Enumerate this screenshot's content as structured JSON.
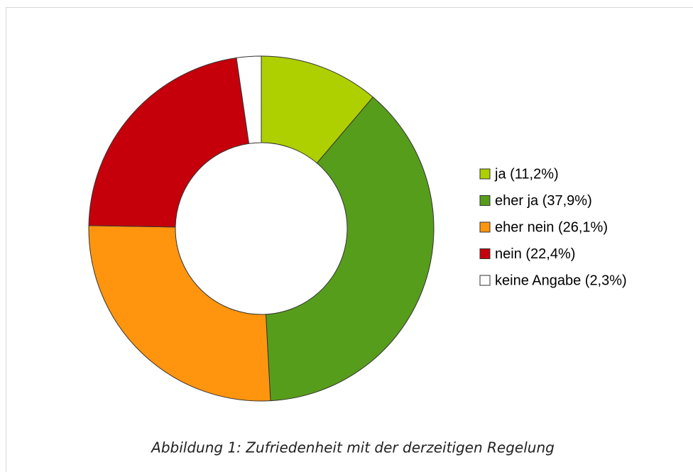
{
  "chart_data": {
    "type": "donut",
    "categories": [
      "ja (11,2%)",
      "eher ja (37,9%)",
      "eher nein (26,1%)",
      "nein (22,4%)",
      "keine Angabe (2,3%)"
    ],
    "values": [
      11.2,
      37.9,
      26.1,
      22.4,
      2.3
    ],
    "colors": [
      "#aecf00",
      "#579d1c",
      "#ff950e",
      "#c5000b",
      "#ffffff"
    ],
    "legend": "right",
    "caption": "Abbildung 1: Zufriedenheit mit der derzeitigen Regelung"
  }
}
